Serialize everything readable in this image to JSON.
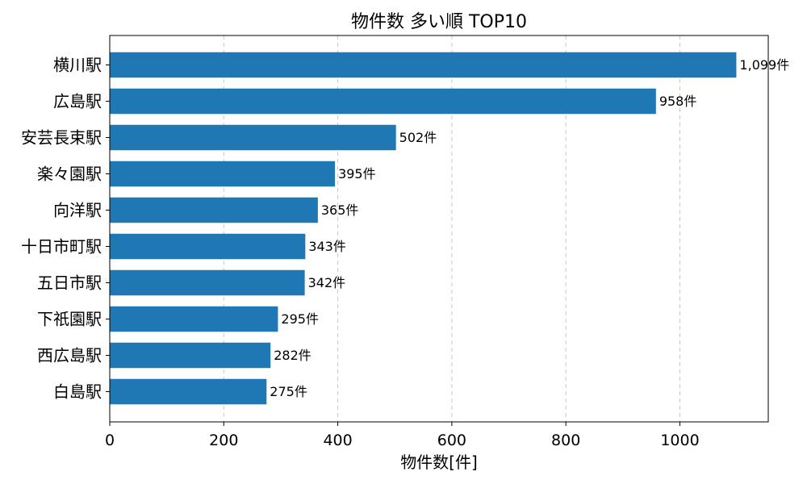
{
  "chart_data": {
    "type": "bar",
    "orientation": "horizontal",
    "title": "物件数 多い順 TOP10",
    "xlabel": "物件数[件]",
    "ylabel": "",
    "categories": [
      "横川駅",
      "広島駅",
      "安芸長束駅",
      "楽々園駅",
      "向洋駅",
      "十日市町駅",
      "五日市駅",
      "下祇園駅",
      "西広島駅",
      "白島駅"
    ],
    "values": [
      1099,
      958,
      502,
      395,
      365,
      343,
      342,
      295,
      282,
      275
    ],
    "value_labels": [
      "1,099件",
      "958件",
      "502件",
      "395件",
      "365件",
      "343件",
      "342件",
      "295件",
      "282件",
      "275件"
    ],
    "xlim": [
      0,
      1155
    ],
    "xticks": [
      0,
      200,
      400,
      600,
      800,
      1000
    ],
    "xtick_labels": [
      "0",
      "200",
      "400",
      "600",
      "800",
      "1000"
    ],
    "grid": "vertical dashed",
    "color": "#1f77b4"
  }
}
